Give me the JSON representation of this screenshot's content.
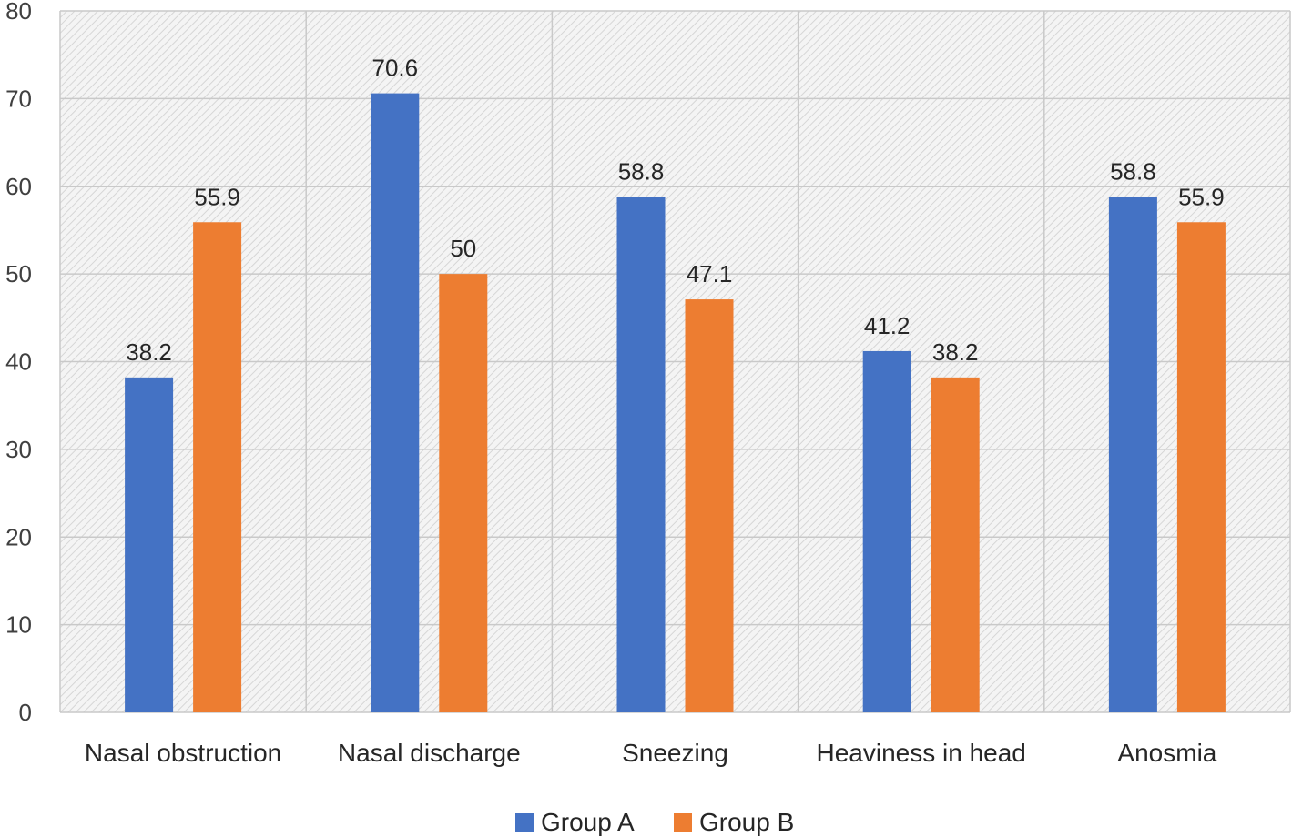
{
  "chart_data": {
    "type": "bar",
    "title": "",
    "xlabel": "",
    "ylabel": "",
    "ylim": [
      0,
      80
    ],
    "yticks": [
      0,
      10,
      20,
      30,
      40,
      50,
      60,
      70,
      80
    ],
    "grid": true,
    "legend_position": "bottom",
    "categories": [
      "Nasal obstruction",
      "Nasal discharge",
      "Sneezing",
      "Heaviness in head",
      "Anosmia"
    ],
    "series": [
      {
        "name": "Group A",
        "color": "#4472C4",
        "values": [
          38.2,
          70.6,
          58.8,
          41.2,
          58.8
        ],
        "labels": [
          "38.2",
          "70.6",
          "58.8",
          "41.2",
          "58.8"
        ]
      },
      {
        "name": "Group B",
        "color": "#ED7D31",
        "values": [
          55.9,
          50,
          47.1,
          38.2,
          55.9
        ],
        "labels": [
          "55.9",
          "50",
          "47.1",
          "38.2",
          "55.9"
        ]
      }
    ]
  }
}
